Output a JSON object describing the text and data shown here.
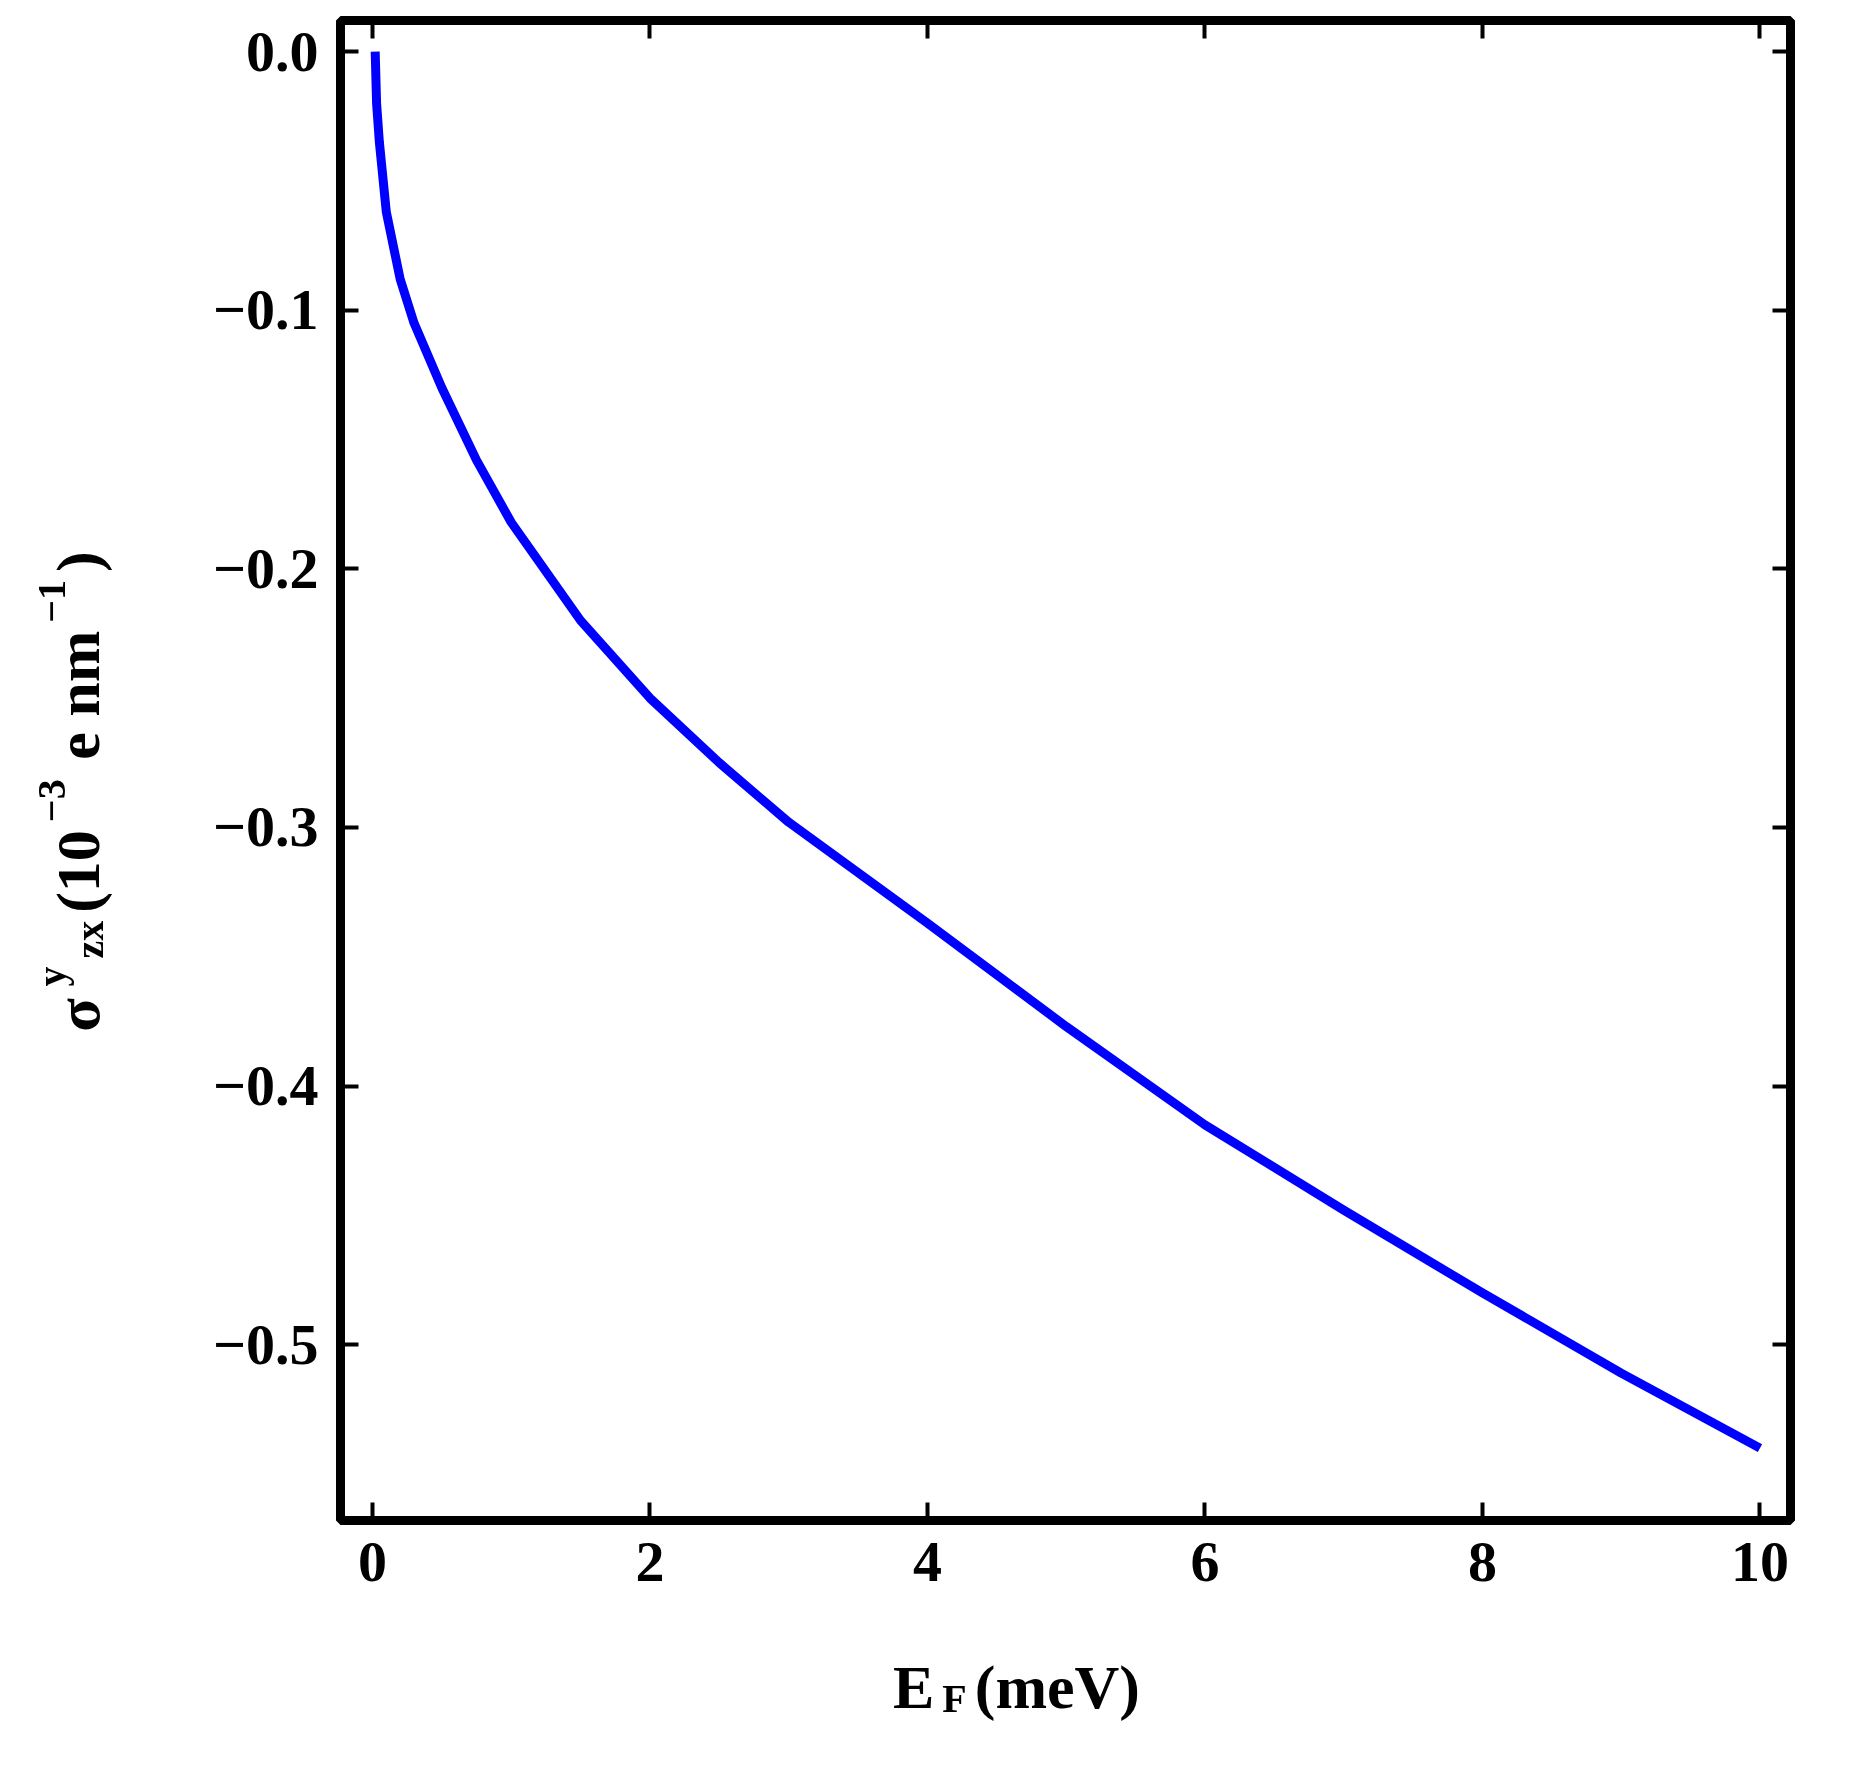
{
  "chart_data": {
    "type": "line",
    "xlabel": "E$_{F}$(meV)",
    "ylabel": "σ$^{y}$$_{zx}$(10$^{−3}$ e nm$^{−1}$)",
    "x": [
      0.02,
      0.03,
      0.05,
      0.1,
      0.2,
      0.3,
      0.5,
      0.75,
      1,
      1.5,
      2,
      2.5,
      3,
      4,
      5,
      6,
      7,
      8,
      9,
      10
    ],
    "series": [
      {
        "color": "#0000ff",
        "values": [
          0,
          -0.02,
          -0.035,
          -0.062,
          -0.088,
          -0.105,
          -0.13,
          -0.158,
          -0.182,
          -0.22,
          -0.25,
          -0.275,
          -0.298,
          -0.337,
          -0.377,
          -0.415,
          -0.448,
          -0.48,
          -0.511,
          -0.54
        ]
      }
    ],
    "xlim": [
      -0.23,
      10.22
    ],
    "ylim": [
      -0.568,
      0.012
    ],
    "xticks": [
      0,
      2,
      4,
      6,
      8,
      10
    ],
    "yticks": [
      {
        "value": 0,
        "label": "0.0"
      },
      {
        "value": -0.1,
        "label": "−0.1"
      },
      {
        "value": -0.2,
        "label": "−0.2"
      },
      {
        "value": -0.3,
        "label": "−0.3"
      },
      {
        "value": -0.4,
        "label": "−0.4"
      },
      {
        "value": -0.5,
        "label": "−0.5"
      }
    ],
    "grid": false,
    "marker": "none",
    "line_style": "solid"
  }
}
